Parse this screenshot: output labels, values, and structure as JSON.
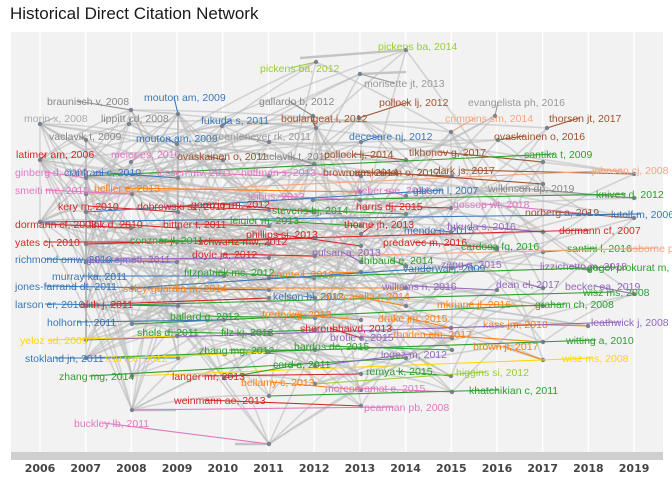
{
  "title": "Historical Direct Citation Network",
  "chart_data": {
    "type": "network",
    "title": "Historical Direct Citation Network",
    "x_axis": {
      "label": "",
      "range": [
        2006,
        2019
      ],
      "ticks": [
        "2006",
        "2007",
        "2008",
        "2009",
        "2010",
        "2011",
        "2012",
        "2013",
        "2014",
        "2015",
        "2016",
        "2017",
        "2018",
        "2019"
      ]
    },
    "grid": true,
    "nodes": [
      {
        "label": "pickens ba, 2014",
        "year": 2014,
        "color": "#9acd32"
      },
      {
        "label": "pickens ba, 2012",
        "year": 2012,
        "color": "#9acd32"
      },
      {
        "label": "morisette jt, 2013",
        "year": 2013,
        "color": "#999999"
      },
      {
        "label": "braunisch v, 2008",
        "year": 2008,
        "color": "#888888"
      },
      {
        "label": "mouton am, 2009",
        "year": 2009,
        "color": "#3a78b8"
      },
      {
        "label": "gallardo b, 2012",
        "year": 2012,
        "color": "#888888"
      },
      {
        "label": "pollock lj, 2012",
        "year": 2012,
        "color": "#a0522d"
      },
      {
        "label": "evangelista ph, 2016",
        "year": 2016,
        "color": "#999999"
      },
      {
        "label": "morin x, 2008",
        "year": 2008,
        "color": "#aaaaaa"
      },
      {
        "label": "lippitt cd, 2008",
        "year": 2008,
        "color": "#888888"
      },
      {
        "label": "fukuda s, 2011",
        "year": 2011,
        "color": "#3a78b8"
      },
      {
        "label": "boulangeat i, 2012",
        "year": 2012,
        "color": "#a0522d"
      },
      {
        "label": "crimmins sm, 2014",
        "year": 2014,
        "color": "#f4a582"
      },
      {
        "label": "thorson jt, 2017",
        "year": 2017,
        "color": "#a0522d"
      },
      {
        "label": "vaclavik t, 2009",
        "year": 2009,
        "color": "#888888"
      },
      {
        "label": "mouton am, 2009",
        "year": 2009,
        "color": "#3a78b8"
      },
      {
        "label": "greenteneyer rk, 2011",
        "year": 2011,
        "color": "#999999"
      },
      {
        "label": "decesare nj, 2012",
        "year": 2012,
        "color": "#3a78b8"
      },
      {
        "label": "ovaskainen o, 2016",
        "year": 2016,
        "color": "#a0522d"
      },
      {
        "label": "latimer am, 2006",
        "year": 2006,
        "color": "#d62728"
      },
      {
        "label": "meier es, 2010",
        "year": 2010,
        "color": "#e377c2"
      },
      {
        "label": "ovaskainen o, 2011",
        "year": 2011,
        "color": "#a0522d"
      },
      {
        "label": "vaclavik t, 2012",
        "year": 2012,
        "color": "#888888"
      },
      {
        "label": "pollock lj, 2014",
        "year": 2014,
        "color": "#a0522d"
      },
      {
        "label": "tikhonov g, 2017",
        "year": 2017,
        "color": "#a0522d"
      },
      {
        "label": "santika t, 2009",
        "year": 2009,
        "color": "#2ca02c"
      },
      {
        "label": "ginberg d, 2009",
        "year": 2009,
        "color": "#e377c2"
      },
      {
        "label": "cianfrani c, 2010",
        "year": 2010,
        "color": "#3a78b8"
      },
      {
        "label": "lessen mv, 2011",
        "year": 2011,
        "color": "#e377c2"
      },
      {
        "label": "hoffman s, 2013",
        "year": 2013,
        "color": "#e377c2"
      },
      {
        "label": "brown am, 2014",
        "year": 2014,
        "color": "#a0522d"
      },
      {
        "label": "clark js, 2017",
        "year": 2017,
        "color": "#a0522d"
      },
      {
        "label": "johnson cj, 2008",
        "year": 2008,
        "color": "#f4a582"
      },
      {
        "label": "smeiti me, 2010",
        "year": 2010,
        "color": "#e377c2"
      },
      {
        "label": "bellier e, 2013",
        "year": 2013,
        "color": "#ff7f0e"
      },
      {
        "label": "ovaskainen o, 2017",
        "year": 2017,
        "color": "#a0522d"
      },
      {
        "label": "wilkinson dp, 2019",
        "year": 2019,
        "color": "#888888"
      },
      {
        "label": "knives d, 2012",
        "year": 2012,
        "color": "#2ca02c"
      },
      {
        "label": "leihus, 2013",
        "year": 2013,
        "color": "#e377c2"
      },
      {
        "label": "weber me, 2014",
        "year": 2014,
        "color": "#e377c2"
      },
      {
        "label": "gibson l, 2007",
        "year": 2007,
        "color": "#3a78b8"
      },
      {
        "label": "kery m, 2010",
        "year": 2010,
        "color": "#d62728"
      },
      {
        "label": "dobrowski sz, 2011",
        "year": 2011,
        "color": "#d62728"
      },
      {
        "label": "gorazio rm, 2012",
        "year": 2012,
        "color": "#d62728"
      },
      {
        "label": "stevens hj, 2014",
        "year": 2014,
        "color": "#2ca02c"
      },
      {
        "label": "harris dj, 2015",
        "year": 2015,
        "color": "#d62728"
      },
      {
        "label": "gossop wt, 2018",
        "year": 2018,
        "color": "#e377c2"
      },
      {
        "label": "norberg a, 2019",
        "year": 2019,
        "color": "#a0522d"
      },
      {
        "label": "lutolf m, 2006",
        "year": 2006,
        "color": "#3a78b8"
      },
      {
        "label": "dormann cf, 2008",
        "year": 2008,
        "color": "#d62728"
      },
      {
        "label": "link d, 2010",
        "year": 2010,
        "color": "#d62728"
      },
      {
        "label": "bittner t, 2011",
        "year": 2011,
        "color": "#d62728"
      },
      {
        "label": "leigier m, 2013",
        "year": 2013,
        "color": "#2ca02c"
      },
      {
        "label": "thorne jh, 2013",
        "year": 2013,
        "color": "#d62728"
      },
      {
        "label": "mendo e, 2015",
        "year": 2015,
        "color": "#3a78b8"
      },
      {
        "label": "fukuda s, 2016",
        "year": 2016,
        "color": "#9467bd"
      },
      {
        "label": "dormann cf, 2007",
        "year": 2007,
        "color": "#d62728"
      },
      {
        "label": "yates cj, 2010",
        "year": 2010,
        "color": "#d62728"
      },
      {
        "label": "conzner jl, 2011",
        "year": 2011,
        "color": "#2ca02c"
      },
      {
        "label": "schwartz mw, 2012",
        "year": 2012,
        "color": "#d62728"
      },
      {
        "label": "phillips sj, 2013",
        "year": 2013,
        "color": "#d62728"
      },
      {
        "label": "predavec m, 2016",
        "year": 2016,
        "color": "#d62728"
      },
      {
        "label": "cardosa fg, 2016",
        "year": 2016,
        "color": "#2ca02c"
      },
      {
        "label": "santini l, 2016",
        "year": 2016,
        "color": "#2ca02c"
      },
      {
        "label": "osborne pe, 2007",
        "year": 2007,
        "color": "#f4a582"
      },
      {
        "label": "richmond omw, 2010",
        "year": 2010,
        "color": "#3a78b8"
      },
      {
        "label": "guillorejmetl, 2011",
        "year": 2011,
        "color": "#9467bd"
      },
      {
        "label": "doyle ja, 2012",
        "year": 2012,
        "color": "#d62728"
      },
      {
        "label": "pulsan a, 2013",
        "year": 2013,
        "color": "#9467bd"
      },
      {
        "label": "thibaud e, 2014",
        "year": 2014,
        "color": "#2ca02c"
      },
      {
        "label": "zeng q, 2015",
        "year": 2015,
        "color": "#9467bd"
      },
      {
        "label": "lizzichetto m, 2018",
        "year": 2018,
        "color": "#9467bd"
      },
      {
        "label": "gogol-prokurat m, 2011",
        "year": 2011,
        "color": "#2ca02c"
      },
      {
        "label": "murray ka, 2011",
        "year": 2011,
        "color": "#3a78b8"
      },
      {
        "label": "fitzpatrick mc, 2012",
        "year": 2012,
        "color": "#2ca02c"
      },
      {
        "label": "comte l, 2013",
        "year": 2013,
        "color": "#ff7f0e"
      },
      {
        "label": "vanderwal j, 2009",
        "year": 2009,
        "color": "#3a78b8"
      },
      {
        "label": "jones-farrand dt, 2011",
        "year": 2011,
        "color": "#3a78b8"
      },
      {
        "label": "soley-guardia m, 2014",
        "year": 2014,
        "color": "#ff7f0e"
      },
      {
        "label": "williams n, 2016",
        "year": 2016,
        "color": "#9467bd"
      },
      {
        "label": "dean el, 2017",
        "year": 2017,
        "color": "#9467bd"
      },
      {
        "label": "becker ea, 2019",
        "year": 2019,
        "color": "#9467bd"
      },
      {
        "label": "wisz ms, 2008",
        "year": 2008,
        "color": "#2ca02c"
      },
      {
        "label": "larson er, 2010",
        "year": 2010,
        "color": "#3a78b8"
      },
      {
        "label": "elith j, 2011",
        "year": 2011,
        "color": "#d62728"
      },
      {
        "label": "kelson bl, 2012",
        "year": 2012,
        "color": "#3a78b8"
      },
      {
        "label": "muscarella r, 2014",
        "year": 2014,
        "color": "#ff7f0e"
      },
      {
        "label": "mkriane jl, 2016",
        "year": 2016,
        "color": "#ff7f0e"
      },
      {
        "label": "graham ch, 2008",
        "year": 2008,
        "color": "#2ca02c"
      },
      {
        "label": "holhorn t, 2011",
        "year": 2011,
        "color": "#3a78b8"
      },
      {
        "label": "ballard g, 2012",
        "year": 2012,
        "color": "#2ca02c"
      },
      {
        "label": "fredrykgj, 2013",
        "year": 2013,
        "color": "#ff7f0e"
      },
      {
        "label": "drake jm, 2015",
        "year": 2015,
        "color": "#ff7f0e"
      },
      {
        "label": "kass jm, 2018",
        "year": 2018,
        "color": "#ff7f0e"
      },
      {
        "label": "leathwick j, 2008",
        "year": 2008,
        "color": "#9467bd"
      },
      {
        "label": "yeloz sd, 2009",
        "year": 2009,
        "color": "#ffd700"
      },
      {
        "label": "shels d, 2011",
        "year": 2011,
        "color": "#2ca02c"
      },
      {
        "label": "filz kj, 2013",
        "year": 2013,
        "color": "#2ca02c"
      },
      {
        "label": "sheroubhaivd, 2013",
        "year": 2013,
        "color": "#d62728"
      },
      {
        "label": "brotie s, 2015",
        "year": 2015,
        "color": "#9467bd"
      },
      {
        "label": "rhoden cm, 2017",
        "year": 2017,
        "color": "#ff7f0e"
      },
      {
        "label": "witting a, 2010",
        "year": 2010,
        "color": "#2ca02c"
      },
      {
        "label": "stokland jn, 2011",
        "year": 2011,
        "color": "#3a78b8"
      },
      {
        "label": "ssu rcc, 2012",
        "year": 2012,
        "color": "#ffd700"
      },
      {
        "label": "zhang mg, 2012",
        "year": 2012,
        "color": "#2ca02c"
      },
      {
        "label": "bardos dc, 2015",
        "year": 2015,
        "color": "#2ca02c"
      },
      {
        "label": "brown jl, 2017",
        "year": 2017,
        "color": "#ff7f0e"
      },
      {
        "label": "wisz ms, 2008",
        "year": 2008,
        "color": "#ffd700"
      },
      {
        "label": "zhang mg, 2014",
        "year": 2014,
        "color": "#2ca02c"
      },
      {
        "label": "logez m, 2012",
        "year": 2012,
        "color": "#9467bd"
      },
      {
        "label": "cord a, 2011",
        "year": 2011,
        "color": "#2ca02c"
      },
      {
        "label": "langer mr, 2013",
        "year": 2013,
        "color": "#d62728"
      },
      {
        "label": "remya k, 2015",
        "year": 2015,
        "color": "#2ca02c"
      },
      {
        "label": "higgins si, 2012",
        "year": 2012,
        "color": "#9acd32"
      },
      {
        "label": "bellamy c, 2013",
        "year": 2013,
        "color": "#ff7f0e"
      },
      {
        "label": "moreno-amat e, 2015",
        "year": 2015,
        "color": "#e377c2"
      },
      {
        "label": "khatchikian c, 2011",
        "year": 2011,
        "color": "#2ca02c"
      },
      {
        "label": "weinmann ae, 2013",
        "year": 2013,
        "color": "#d62728"
      },
      {
        "label": "pearman pb, 2008",
        "year": 2008,
        "color": "#e377c2"
      },
      {
        "label": "buckley lb, 2011",
        "year": 2011,
        "color": "#e377c2"
      }
    ]
  }
}
